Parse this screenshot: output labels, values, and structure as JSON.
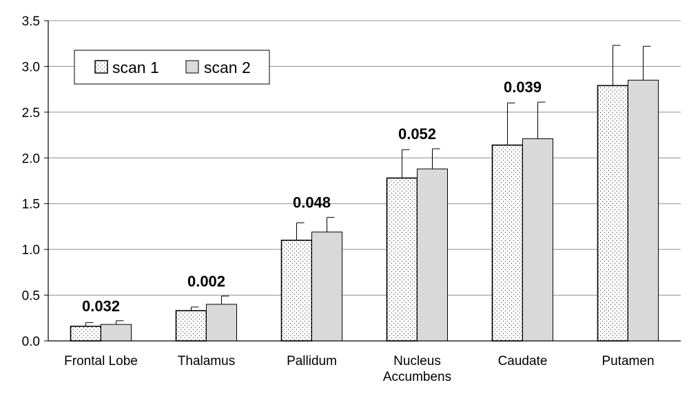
{
  "chart_data": {
    "type": "bar",
    "categories": [
      [
        "Frontal Lobe"
      ],
      [
        "Thalamus"
      ],
      [
        "Pallidum"
      ],
      [
        "Nucleus",
        "Accumbens"
      ],
      [
        "Caudate"
      ],
      [
        "Putamen"
      ]
    ],
    "series": [
      {
        "name": "scan 1",
        "values": [
          0.16,
          0.33,
          1.1,
          1.78,
          2.14,
          2.79
        ],
        "error": [
          0.04,
          0.04,
          0.19,
          0.31,
          0.46,
          0.44
        ],
        "pattern": "dotted",
        "color": "#ffffff"
      },
      {
        "name": "scan 2",
        "values": [
          0.18,
          0.4,
          1.19,
          1.88,
          2.21,
          2.85
        ],
        "error": [
          0.04,
          0.09,
          0.16,
          0.22,
          0.4,
          0.37
        ],
        "pattern": "solid",
        "color": "#d9d9d9"
      }
    ],
    "annotations": [
      "0.032",
      "0.002",
      "0.048",
      "0.052",
      "0.039",
      ""
    ],
    "yticks": [
      "0.0",
      "0.5",
      "1.0",
      "1.5",
      "2.0",
      "2.5",
      "3.0",
      "3.5"
    ],
    "ylim": [
      0,
      3.5
    ],
    "grid": true,
    "legend_position": "top-left",
    "title": "",
    "xlabel": "",
    "ylabel": ""
  }
}
